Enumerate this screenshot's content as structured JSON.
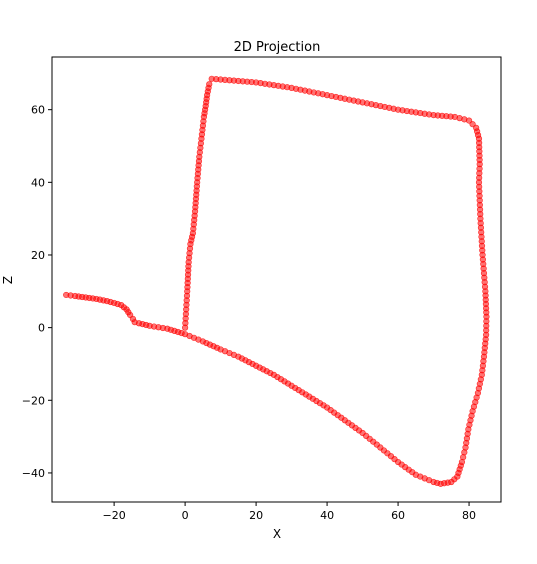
{
  "chart_data": {
    "type": "scatter",
    "title": "2D Projection",
    "xlabel": "X",
    "ylabel": "Z",
    "xlim": [
      -37.5,
      89
    ],
    "ylim": [
      -48,
      74.5
    ],
    "xticks": [
      -20,
      0,
      20,
      40,
      60,
      80
    ],
    "yticks": [
      -40,
      -20,
      0,
      20,
      40,
      60
    ],
    "xtick_labels": [
      "−20",
      "0",
      "20",
      "40",
      "60",
      "80"
    ],
    "ytick_labels": [
      "−40",
      "−20",
      "0",
      "20",
      "40",
      "60"
    ],
    "grid": false,
    "marker_color": "#ff0000",
    "series": [
      {
        "path": [
          [
            0,
            0
          ],
          [
            0.3,
            5
          ],
          [
            0.6,
            10
          ],
          [
            1,
            18
          ],
          [
            1.5,
            23
          ],
          [
            2.2,
            26
          ],
          [
            2.8,
            32
          ],
          [
            3.4,
            40
          ],
          [
            4,
            47
          ],
          [
            4.6,
            52
          ],
          [
            5.3,
            58
          ],
          [
            5.8,
            61
          ],
          [
            6.2,
            64
          ],
          [
            6.8,
            67
          ],
          [
            7.5,
            68.5
          ],
          [
            20,
            67.5
          ],
          [
            30,
            66
          ],
          [
            40,
            64
          ],
          [
            50,
            62
          ],
          [
            60,
            60
          ],
          [
            70,
            58.5
          ],
          [
            76,
            58
          ],
          [
            80,
            57
          ],
          [
            82,
            55
          ],
          [
            82.8,
            52
          ],
          [
            83,
            45
          ],
          [
            82.8,
            40
          ],
          [
            83.2,
            30
          ],
          [
            83.8,
            20
          ],
          [
            84.6,
            10
          ],
          [
            84.9,
            3
          ],
          [
            84.8,
            -2
          ],
          [
            84.2,
            -8
          ],
          [
            83.6,
            -13
          ],
          [
            82.5,
            -18
          ],
          [
            81,
            -23
          ],
          [
            79.8,
            -28
          ],
          [
            79,
            -33
          ],
          [
            78,
            -37
          ],
          [
            76.7,
            -41
          ],
          [
            75,
            -42.5
          ],
          [
            72,
            -43
          ],
          [
            70,
            -42.5
          ],
          [
            65,
            -40.5
          ],
          [
            60,
            -37
          ],
          [
            55,
            -33
          ],
          [
            50,
            -29
          ],
          [
            45,
            -25.5
          ],
          [
            40,
            -22
          ],
          [
            35,
            -19
          ],
          [
            30,
            -16
          ],
          [
            25,
            -13
          ],
          [
            20,
            -10.5
          ],
          [
            15,
            -8
          ],
          [
            10,
            -6
          ],
          [
            5,
            -3.8
          ],
          [
            0,
            -1.8
          ],
          [
            -2,
            -1.2
          ],
          [
            -5,
            -0.3
          ],
          [
            -10,
            0.5
          ],
          [
            -13,
            1.2
          ],
          [
            -14.2,
            1.5
          ],
          [
            -14.7,
            2.4
          ],
          [
            -15.5,
            3.5
          ],
          [
            -16.5,
            5
          ],
          [
            -18,
            6.2
          ],
          [
            -20,
            6.8
          ],
          [
            -22,
            7.3
          ],
          [
            -25,
            7.9
          ],
          [
            -28,
            8.3
          ],
          [
            -31,
            8.7
          ],
          [
            -33.5,
            9
          ]
        ]
      }
    ]
  }
}
